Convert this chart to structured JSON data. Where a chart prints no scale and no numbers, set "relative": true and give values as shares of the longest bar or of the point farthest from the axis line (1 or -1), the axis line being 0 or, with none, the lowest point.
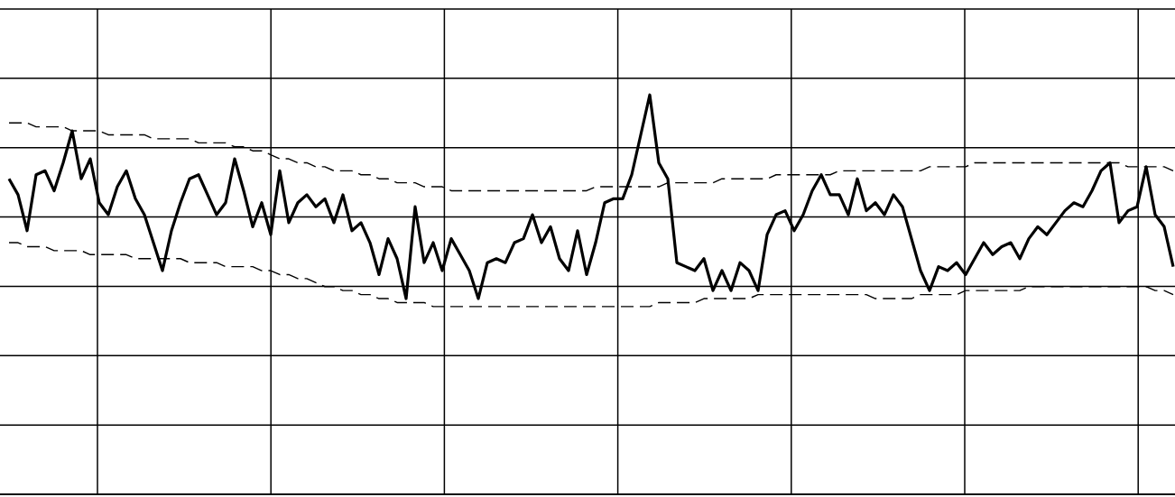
{
  "chart_data": {
    "type": "line",
    "relative": true,
    "grid": true,
    "categories": [
      null,
      null,
      null,
      null,
      null,
      null,
      null,
      null,
      null,
      null,
      null,
      null,
      null,
      null,
      null,
      null,
      null,
      null,
      null,
      null,
      null,
      null,
      null,
      null,
      null,
      null,
      null,
      null,
      null,
      null,
      null,
      null,
      null,
      null,
      null,
      null,
      null,
      null,
      null,
      null,
      null,
      null,
      null,
      null,
      null,
      null,
      null,
      null,
      null,
      null,
      null,
      null,
      null,
      null,
      null,
      null,
      null,
      null,
      null,
      null,
      null,
      null,
      null,
      null,
      null,
      null,
      null,
      null,
      null,
      null,
      null,
      null,
      null,
      null,
      null,
      null,
      null,
      null,
      null,
      null,
      null,
      null,
      null,
      null,
      null,
      null,
      null,
      null,
      null,
      null,
      null,
      null,
      null,
      null,
      null,
      null,
      null,
      null,
      null,
      null,
      null,
      null,
      null,
      null,
      null,
      null,
      null,
      null,
      null,
      null,
      null,
      null,
      null,
      null,
      null,
      null,
      null,
      null,
      null,
      null,
      null,
      null,
      null,
      null,
      null,
      null,
      null,
      null,
      null,
      null
    ],
    "series": [
      {
        "color": "#000000",
        "line_style": "solid",
        "values": [
          0.79,
          0.75,
          0.66,
          0.8,
          0.81,
          0.76,
          0.83,
          0.91,
          0.79,
          0.84,
          0.73,
          0.7,
          0.77,
          0.81,
          0.74,
          0.7,
          0.63,
          0.56,
          0.66,
          0.73,
          0.79,
          0.8,
          0.75,
          0.7,
          0.73,
          0.84,
          0.76,
          0.67,
          0.73,
          0.65,
          0.81,
          0.68,
          0.73,
          0.75,
          0.72,
          0.74,
          0.68,
          0.75,
          0.66,
          0.68,
          0.63,
          0.55,
          0.64,
          0.59,
          0.49,
          0.72,
          0.58,
          0.63,
          0.56,
          0.64,
          0.6,
          0.56,
          0.49,
          0.58,
          0.59,
          0.58,
          0.63,
          0.64,
          0.7,
          0.63,
          0.67,
          0.59,
          0.56,
          0.66,
          0.55,
          0.63,
          0.73,
          0.74,
          0.74,
          0.8,
          0.9,
          1,
          0.83,
          0.79,
          0.58,
          0.57,
          0.56,
          0.59,
          0.51,
          0.56,
          0.51,
          0.58,
          0.56,
          0.51,
          0.65,
          0.7,
          0.71,
          0.66,
          0.7,
          0.76,
          0.8,
          0.75,
          0.75,
          0.7,
          0.79,
          0.71,
          0.73,
          0.7,
          0.75,
          0.72,
          0.64,
          0.56,
          0.51,
          0.57,
          0.56,
          0.58,
          0.55,
          0.59,
          0.63,
          0.6,
          0.62,
          0.63,
          0.59,
          0.64,
          0.67,
          0.65,
          0.68,
          0.71,
          0.73,
          0.72,
          0.76,
          0.81,
          0.83,
          0.68,
          0.71,
          0.72,
          0.82,
          0.7,
          0.67,
          0.57
        ]
      },
      {
        "color": "#000000",
        "line_style": "dashed",
        "values": [
          0.93,
          0.93,
          0.93,
          0.92,
          0.92,
          0.92,
          0.92,
          0.91,
          0.91,
          0.91,
          0.91,
          0.9,
          0.9,
          0.9,
          0.9,
          0.9,
          0.89,
          0.89,
          0.89,
          0.89,
          0.89,
          0.88,
          0.88,
          0.88,
          0.88,
          0.87,
          0.87,
          0.86,
          0.86,
          0.85,
          0.84,
          0.84,
          0.83,
          0.83,
          0.82,
          0.82,
          0.81,
          0.81,
          0.81,
          0.8,
          0.8,
          0.79,
          0.79,
          0.78,
          0.78,
          0.78,
          0.77,
          0.77,
          0.77,
          0.76,
          0.76,
          0.76,
          0.76,
          0.76,
          0.76,
          0.76,
          0.76,
          0.76,
          0.76,
          0.76,
          0.76,
          0.76,
          0.76,
          0.76,
          0.76,
          0.77,
          0.77,
          0.77,
          0.77,
          0.77,
          0.77,
          0.77,
          0.77,
          0.78,
          0.78,
          0.78,
          0.78,
          0.78,
          0.78,
          0.79,
          0.79,
          0.79,
          0.79,
          0.79,
          0.79,
          0.8,
          0.8,
          0.8,
          0.8,
          0.8,
          0.8,
          0.8,
          0.81,
          0.81,
          0.81,
          0.81,
          0.81,
          0.81,
          0.81,
          0.81,
          0.81,
          0.81,
          0.82,
          0.82,
          0.82,
          0.82,
          0.82,
          0.83,
          0.83,
          0.83,
          0.83,
          0.83,
          0.83,
          0.83,
          0.83,
          0.83,
          0.83,
          0.83,
          0.83,
          0.83,
          0.83,
          0.83,
          0.83,
          0.83,
          0.82,
          0.82,
          0.82,
          0.82,
          0.82,
          0.81
        ]
      },
      {
        "color": "#000000",
        "line_style": "dashed",
        "values": [
          0.63,
          0.63,
          0.62,
          0.62,
          0.62,
          0.61,
          0.61,
          0.61,
          0.61,
          0.6,
          0.6,
          0.6,
          0.6,
          0.6,
          0.59,
          0.59,
          0.59,
          0.59,
          0.59,
          0.59,
          0.58,
          0.58,
          0.58,
          0.58,
          0.57,
          0.57,
          0.57,
          0.57,
          0.56,
          0.56,
          0.55,
          0.55,
          0.54,
          0.54,
          0.53,
          0.52,
          0.52,
          0.51,
          0.51,
          0.5,
          0.5,
          0.49,
          0.49,
          0.48,
          0.48,
          0.48,
          0.48,
          0.47,
          0.47,
          0.47,
          0.47,
          0.47,
          0.47,
          0.47,
          0.47,
          0.47,
          0.47,
          0.47,
          0.47,
          0.47,
          0.47,
          0.47,
          0.47,
          0.47,
          0.47,
          0.47,
          0.47,
          0.47,
          0.47,
          0.47,
          0.47,
          0.47,
          0.48,
          0.48,
          0.48,
          0.48,
          0.48,
          0.49,
          0.49,
          0.49,
          0.49,
          0.49,
          0.49,
          0.5,
          0.5,
          0.5,
          0.5,
          0.5,
          0.5,
          0.5,
          0.5,
          0.5,
          0.5,
          0.5,
          0.5,
          0.5,
          0.49,
          0.49,
          0.49,
          0.49,
          0.49,
          0.5,
          0.5,
          0.5,
          0.5,
          0.5,
          0.51,
          0.51,
          0.51,
          0.51,
          0.51,
          0.51,
          0.51,
          0.52,
          0.52,
          0.52,
          0.52,
          0.52,
          0.52,
          0.52,
          0.52,
          0.52,
          0.52,
          0.52,
          0.52,
          0.52,
          0.52,
          0.51,
          0.51,
          0.5
        ]
      }
    ]
  }
}
